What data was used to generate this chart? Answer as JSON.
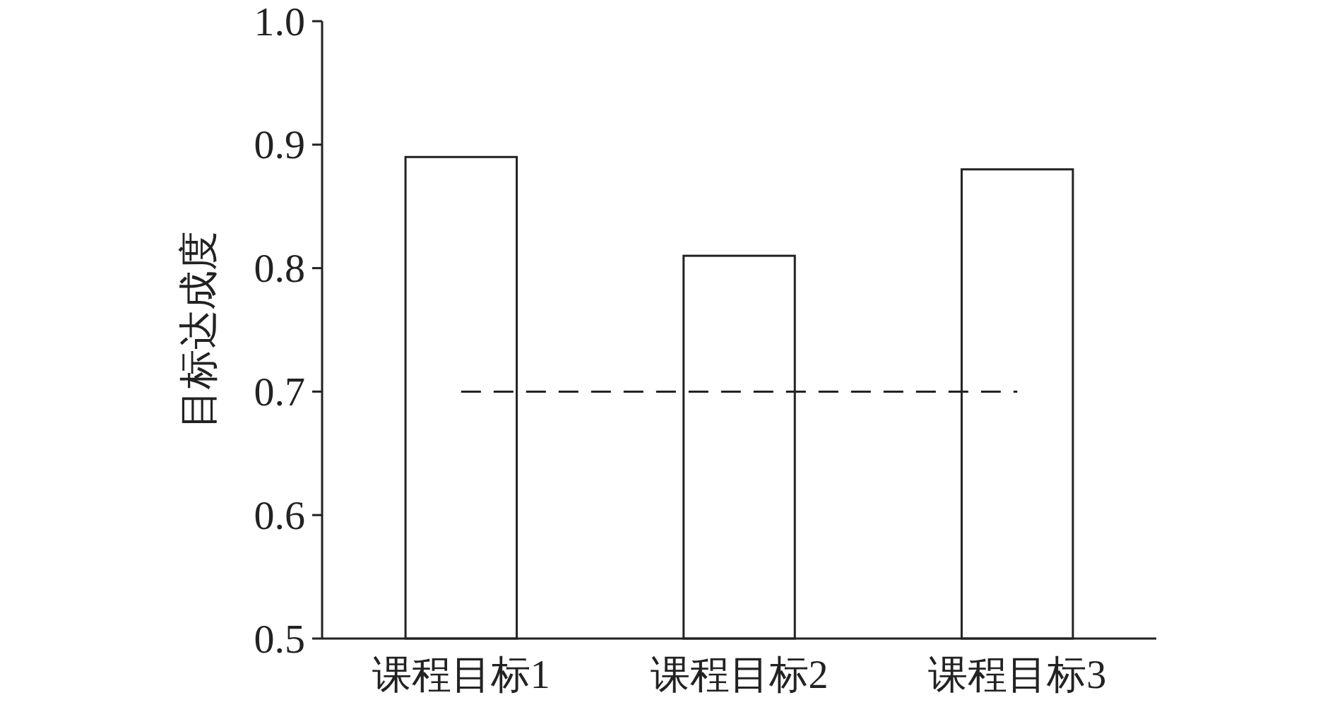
{
  "chart_data": {
    "type": "bar",
    "ylabel": "目标达成度",
    "categories": [
      "课程目标1",
      "课程目标2",
      "课程目标3"
    ],
    "values": [
      0.89,
      0.81,
      0.88
    ],
    "color": "#ffffff",
    "ylim": [
      0.5,
      1.0
    ],
    "yticks": [
      {
        "value": 0.5,
        "label": "0.5"
      },
      {
        "value": 0.6,
        "label": "0.6"
      },
      {
        "value": 0.7,
        "label": "0.7"
      },
      {
        "value": 0.8,
        "label": "0.8"
      },
      {
        "value": 0.9,
        "label": "0.9"
      },
      {
        "value": 1.0,
        "label": "1.0"
      }
    ],
    "ref_lines": [
      {
        "axis": "y",
        "value": 0.7,
        "line_style": "dashed",
        "color": "#222222"
      }
    ],
    "grid": false
  }
}
